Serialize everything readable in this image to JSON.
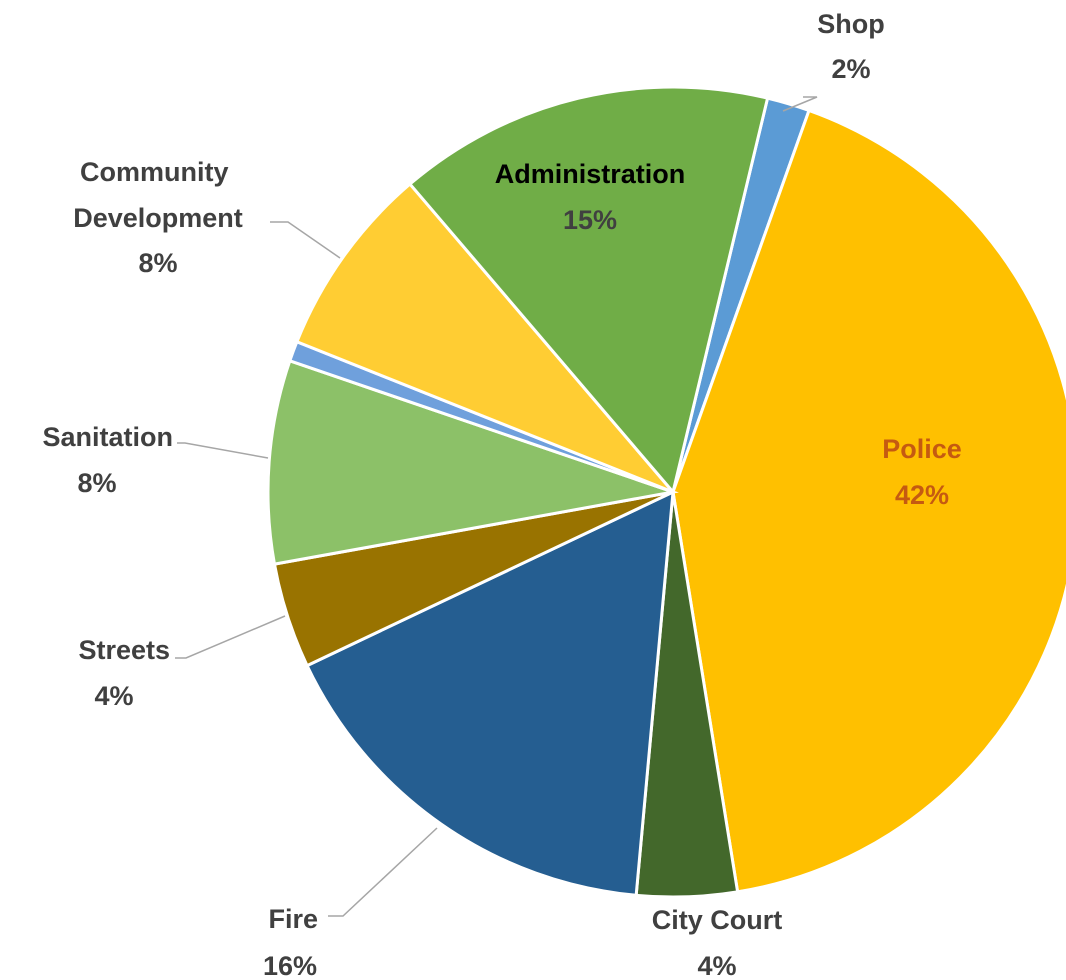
{
  "chart_data": {
    "type": "pie",
    "slices": [
      {
        "label": "Shop",
        "value_label": "2%",
        "value": 1.7,
        "color": "#5b9bd5"
      },
      {
        "label": "Police",
        "value_label": "42%",
        "value": 42.0,
        "color": "#ffc000"
      },
      {
        "label": "City Court",
        "value_label": "4%",
        "value": 4.0,
        "color": "#43682b"
      },
      {
        "label": "Fire",
        "value_label": "16%",
        "value": 16.5,
        "color": "#255e91"
      },
      {
        "label": "Streets",
        "value_label": "4%",
        "value": 4.2,
        "color": "#997300"
      },
      {
        "label": "Sanitation",
        "value_label": "8%",
        "value": 8.1,
        "color": "#8cc168"
      },
      {
        "label": "",
        "value_label": "",
        "value": 0.8,
        "color": "#6fa0dc"
      },
      {
        "label": "Community Development",
        "value_label": "8%",
        "value": 7.7,
        "color": "#ffcd33"
      },
      {
        "label": "Administration",
        "value_label": "15%",
        "value": 15.0,
        "color": "#70ad47"
      }
    ],
    "label_color": "#404040",
    "inside_label_colors": {
      "Police": "#c55a11",
      "Administration": "#000000"
    }
  }
}
